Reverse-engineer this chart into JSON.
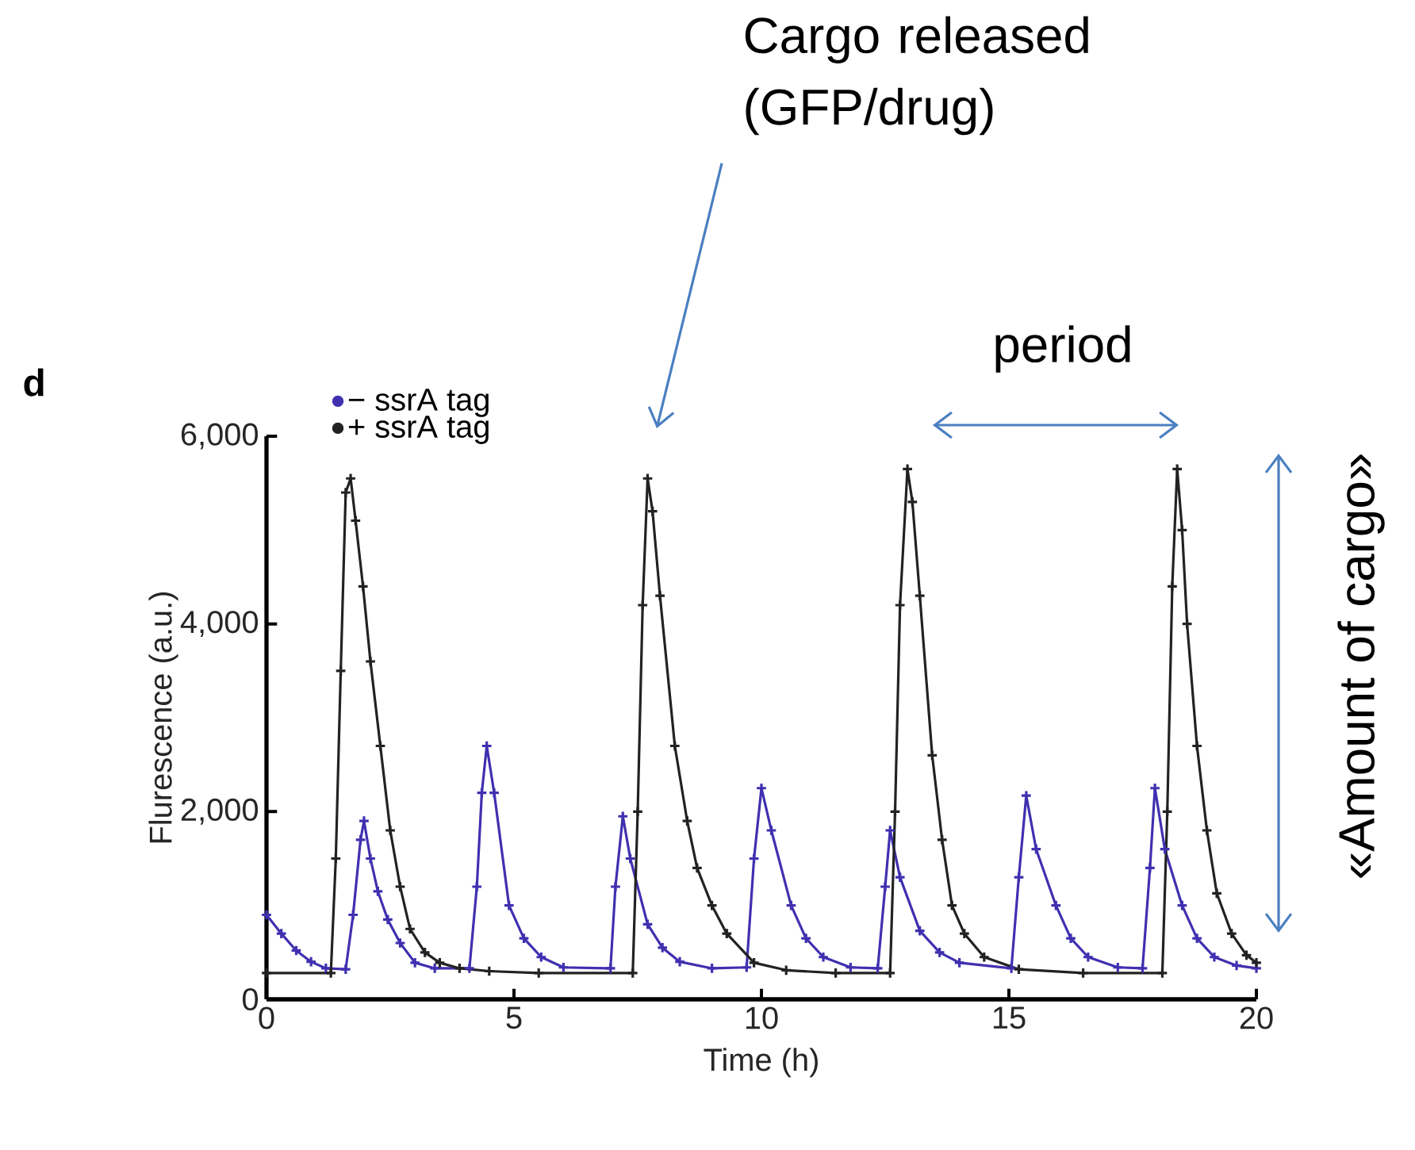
{
  "chart_data": {
    "type": "line",
    "xlabel": "Time (h)",
    "ylabel": "Flurescence (a.u.)",
    "annotations": [
      "d",
      "Cargo released (GFP/drug)",
      "period",
      "«Amount of cargo»"
    ],
    "xlim": [
      0,
      20
    ],
    "ylim": [
      0,
      6000
    ],
    "xticks": [
      0,
      5,
      10,
      15,
      20
    ],
    "yticks": [
      0,
      {
        "value": 2000,
        "label": "2,000"
      },
      {
        "value": 4000,
        "label": "4,000"
      },
      {
        "value": 6000,
        "label": "6,000"
      }
    ],
    "legend": "top left",
    "marker": "cross",
    "line_style": "solid",
    "grid": false,
    "series": [
      {
        "name": "− ssrA tag",
        "color": "#4030b0",
        "x": [
          0,
          0.3,
          0.6,
          0.9,
          1.2,
          1.6,
          1.75,
          1.9,
          1.97,
          2.1,
          2.25,
          2.45,
          2.7,
          3.0,
          3.4,
          4.1,
          4.25,
          4.35,
          4.45,
          4.6,
          4.9,
          5.2,
          5.55,
          6.0,
          6.95,
          7.05,
          7.2,
          7.35,
          7.7,
          8.0,
          8.35,
          9.0,
          9.7,
          9.85,
          10.0,
          10.2,
          10.6,
          10.9,
          11.25,
          11.8,
          12.35,
          12.5,
          12.6,
          12.8,
          13.2,
          13.6,
          14.0,
          15.05,
          15.2,
          15.35,
          15.55,
          15.95,
          16.25,
          16.6,
          17.2,
          17.7,
          17.85,
          17.95,
          18.15,
          18.5,
          18.8,
          19.15,
          19.6,
          20
        ],
        "values": [
          900,
          700,
          520,
          400,
          330,
          320,
          900,
          1700,
          1900,
          1500,
          1150,
          850,
          600,
          390,
          330,
          330,
          1200,
          2200,
          2700,
          2200,
          1000,
          650,
          450,
          340,
          330,
          1200,
          1950,
          1500,
          800,
          550,
          400,
          330,
          340,
          1500,
          2250,
          1800,
          1000,
          650,
          450,
          340,
          330,
          1200,
          1800,
          1300,
          730,
          500,
          390,
          330,
          1300,
          2170,
          1600,
          1000,
          650,
          450,
          340,
          330,
          1400,
          2250,
          1600,
          1000,
          650,
          450,
          360,
          330
        ]
      },
      {
        "name": "+ ssrA tag",
        "color": "#222222",
        "x": [
          0,
          1.3,
          1.4,
          1.5,
          1.6,
          1.7,
          1.8,
          1.95,
          2.1,
          2.3,
          2.5,
          2.7,
          2.9,
          3.2,
          3.5,
          3.9,
          4.5,
          5.5,
          7.4,
          7.5,
          7.6,
          7.7,
          7.8,
          7.95,
          8.25,
          8.5,
          8.7,
          9.0,
          9.3,
          9.85,
          10.5,
          11.5,
          12.6,
          12.7,
          12.8,
          12.95,
          13.05,
          13.2,
          13.45,
          13.65,
          13.85,
          14.1,
          14.5,
          15.2,
          16.5,
          18.1,
          18.2,
          18.3,
          18.4,
          18.5,
          18.6,
          18.8,
          19.0,
          19.2,
          19.5,
          19.8,
          20
        ],
        "values": [
          280,
          280,
          1500,
          3500,
          5400,
          5550,
          5100,
          4400,
          3600,
          2700,
          1800,
          1200,
          750,
          500,
          390,
          330,
          300,
          280,
          280,
          2000,
          4200,
          5550,
          5200,
          4300,
          2700,
          1900,
          1400,
          1000,
          700,
          390,
          310,
          280,
          280,
          2000,
          4200,
          5650,
          5300,
          4300,
          2600,
          1700,
          1000,
          700,
          450,
          320,
          280,
          280,
          2000,
          4400,
          5650,
          5000,
          4000,
          2700,
          1800,
          1130,
          700,
          470,
          390
        ]
      }
    ]
  }
}
